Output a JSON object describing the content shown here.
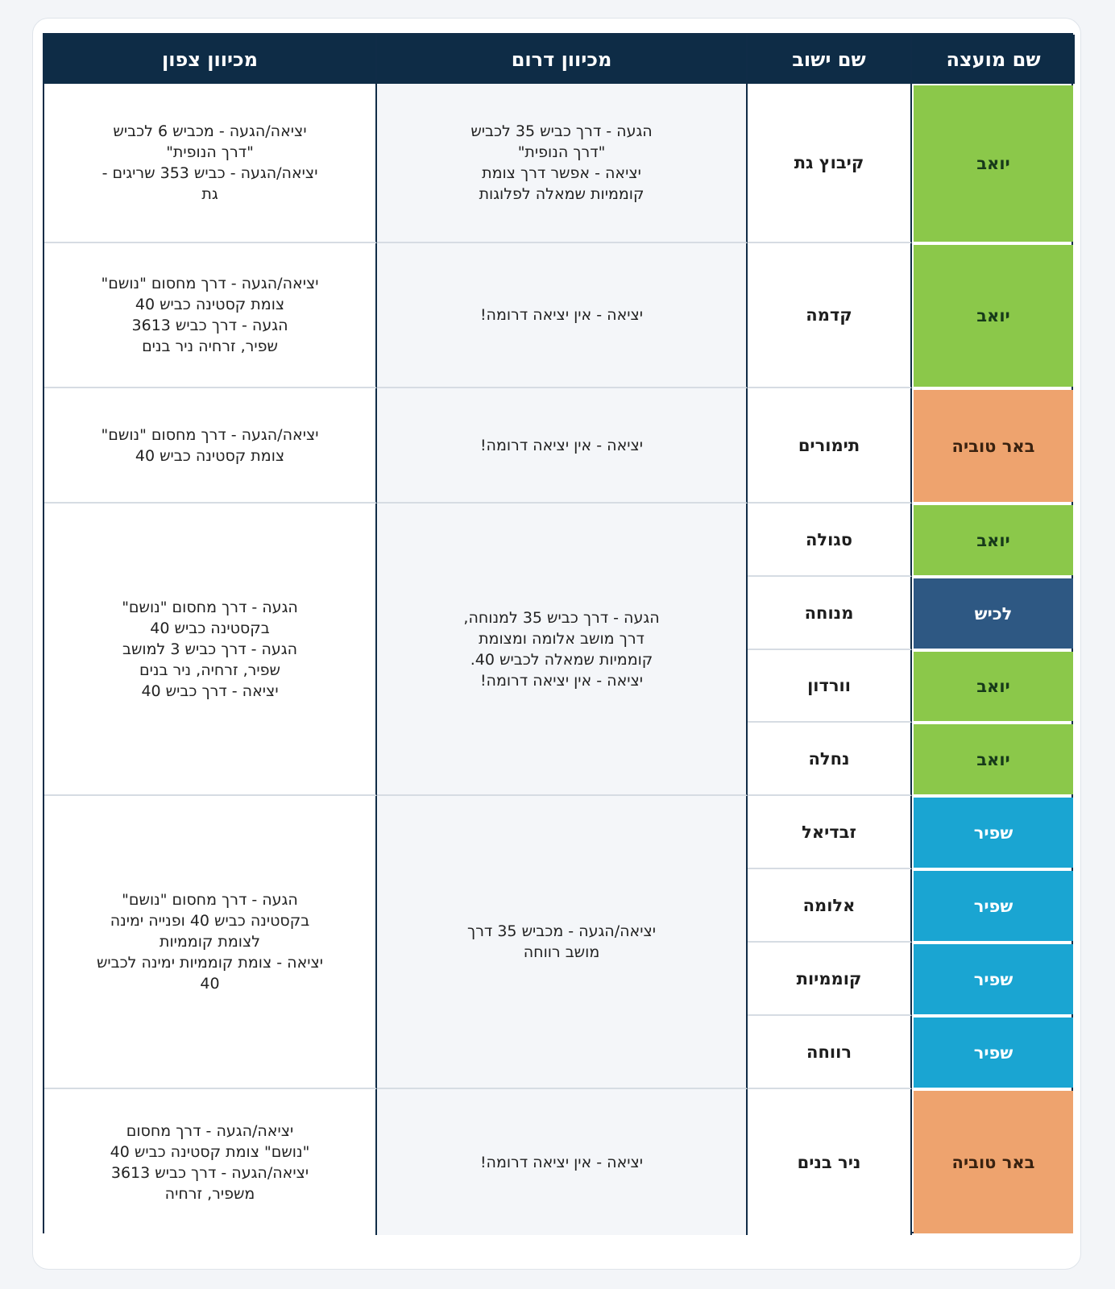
{
  "headers": {
    "north": "מכיוון צפון",
    "south": "מכיוון דרום",
    "settlement": "שם ישוב",
    "council": "שם מועצה"
  },
  "north_directions": [
    "יציאה/הגעה - מכביש 6 לכביש\n\"דרך הנופית\"\nיציאה/הגעה - כביש 353 שריגים -\nגת",
    "יציאה/הגעה - דרך מחסום \"נושם\"\nצומת קסטינה כביש 40\nהגעה - דרך כביש 3613\nשפיר, זרחיה ניר בנים",
    "יציאה/הגעה - דרך מחסום \"נושם\"\nצומת קסטינה כביש 40",
    "הגעה - דרך מחסום \"נושם\"\nבקסטינה כביש 40\nהגעה - דרך כביש 3 למושב\nשפיר, זרחיה, ניר בנים\nיציאה - דרך כביש 40",
    "הגעה - דרך מחסום \"נושם\"\nבקסטינה כביש 40 ופנייה ימינה\nלצומת קוממיות\nיציאה - צומת קוממיות ימינה לכביש\n40",
    "יציאה/הגעה - דרך מחסום\n\"נושם\" צומת קסטינה כביש 40\nיציאה/הגעה - דרך כביש 3613\nמשפיר, זרחיה"
  ],
  "south_directions": [
    "הגעה - דרך כביש 35 לכביש\n\"דרך הנופית\"\nיציאה - אפשר דרך צומת\nקוממיות שמאלה לפלוגות",
    "יציאה - אין יציאה דרומה!",
    "יציאה - אין יציאה דרומה!",
    "הגעה - דרך כביש 35 למנוחה,\nדרך מושב אלומה ומצומת\nקוממיות שמאלה לכביש 40.\nיציאה - אין יציאה דרומה!",
    "יציאה/הגעה - מכביש 35 דרך\nמושב רווחה",
    "יציאה - אין יציאה דרומה!"
  ],
  "rows": [
    {
      "settlement": "קיבוץ גת",
      "council": "יואב"
    },
    {
      "settlement": "קדמה",
      "council": "יואב"
    },
    {
      "settlement": "תימורים",
      "council": "באר טוביה"
    },
    {
      "settlement": "סגולה",
      "council": "יואב"
    },
    {
      "settlement": "מנוחה",
      "council": "לכיש"
    },
    {
      "settlement": "וורדון",
      "council": "יואב"
    },
    {
      "settlement": "נחלה",
      "council": "יואב"
    },
    {
      "settlement": "זבדיאל",
      "council": "שפיר"
    },
    {
      "settlement": "אלומה",
      "council": "שפיר"
    },
    {
      "settlement": "קוממיות",
      "council": "שפיר"
    },
    {
      "settlement": "רווחה",
      "council": "שפיר"
    },
    {
      "settlement": "ניר בנים",
      "council": "באר טוביה"
    }
  ],
  "council_colors": {
    "יואב": "#8bc84a",
    "באר טוביה": "#eea36e",
    "לכיש": "#2e5883",
    "שפיר": "#1aa5d2"
  },
  "header_color": "#0e2c46"
}
